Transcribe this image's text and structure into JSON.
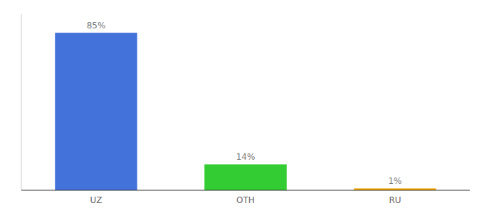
{
  "chart_data": {
    "type": "bar",
    "categories": [
      "UZ",
      "OTH",
      "RU"
    ],
    "values": [
      85,
      14,
      1
    ],
    "value_labels": [
      "85%",
      "14%",
      "1%"
    ],
    "colors": [
      "#4472db",
      "#33cc33",
      "#f0a500"
    ],
    "ylim": [
      0,
      95
    ],
    "data_labels": true,
    "tick_labels": "x",
    "grid": false
  }
}
